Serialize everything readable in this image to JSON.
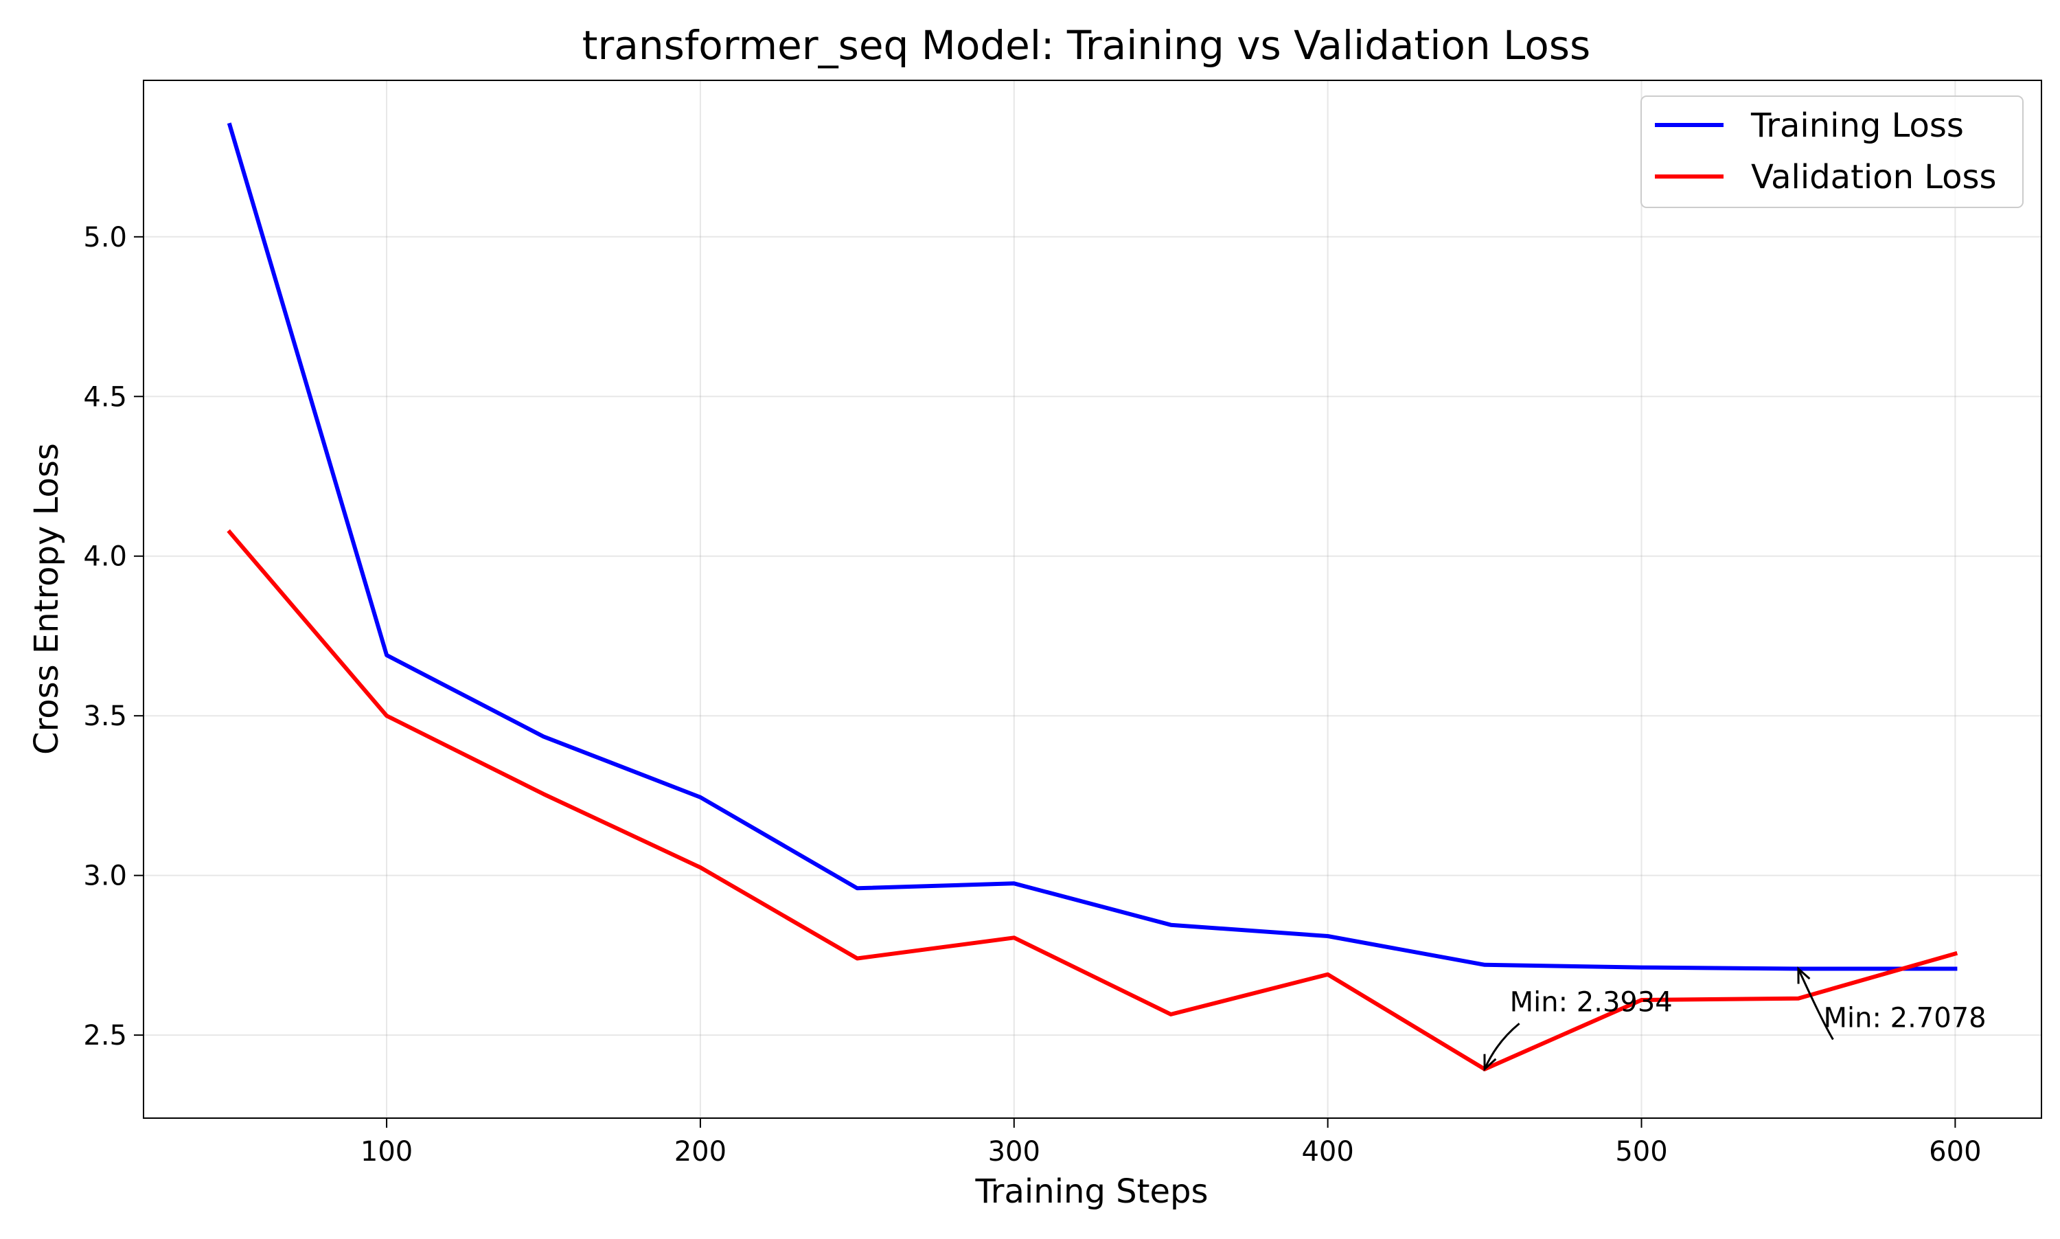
{
  "chart_data": {
    "type": "line",
    "title": "transformer_seq Model: Training vs Validation Loss",
    "xlabel": "Training Steps",
    "ylabel": "Cross Entropy Loss",
    "xlim": [
      22.5,
      627.5
    ],
    "ylim": [
      2.24,
      5.49
    ],
    "xticks": [
      100,
      200,
      300,
      400,
      500,
      600
    ],
    "yticks": [
      2.5,
      3.0,
      3.5,
      4.0,
      4.5,
      5.0
    ],
    "xtick_labels": [
      "100",
      "200",
      "300",
      "400",
      "500",
      "600"
    ],
    "ytick_labels": [
      "2.5",
      "3.0",
      "3.5",
      "4.0",
      "4.5",
      "5.0"
    ],
    "grid": true,
    "legend_position": "upper right",
    "x": [
      50,
      100,
      150,
      200,
      250,
      300,
      350,
      400,
      450,
      500,
      550,
      600
    ],
    "series": [
      {
        "name": "Training Loss",
        "color": "#0000ff",
        "values": [
          5.35,
          3.69,
          3.435,
          3.245,
          2.96,
          2.975,
          2.845,
          2.81,
          2.72,
          2.712,
          2.7078,
          2.7078
        ]
      },
      {
        "name": "Validation Loss",
        "color": "#ff0000",
        "values": [
          4.075,
          3.5,
          3.255,
          3.025,
          2.74,
          2.805,
          2.565,
          2.69,
          2.3934,
          2.61,
          2.615,
          2.755
        ]
      }
    ],
    "annotations": [
      {
        "text": "Min: 2.3934",
        "point": [
          450,
          2.3934
        ],
        "text_pos": [
          458,
          2.575
        ],
        "color": "#000000"
      },
      {
        "text": "Min: 2.7078",
        "point": [
          550,
          2.7078
        ],
        "text_pos": [
          558,
          2.525
        ],
        "color": "#000000"
      }
    ]
  }
}
